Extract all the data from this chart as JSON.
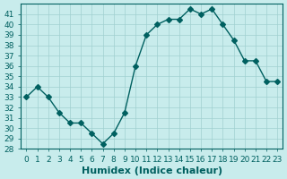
{
  "x": [
    0,
    1,
    2,
    3,
    4,
    5,
    6,
    7,
    8,
    9,
    10,
    11,
    12,
    13,
    14,
    15,
    16,
    17,
    18,
    19,
    20,
    21,
    22,
    23
  ],
  "y": [
    33,
    34,
    33,
    31.5,
    30.5,
    30.5,
    29.5,
    28.5,
    29.5,
    31.5,
    36,
    39,
    40,
    40.5,
    40.5,
    41.5,
    41,
    41.5,
    40,
    38.5,
    36.5,
    36.5,
    34.5,
    34.5
  ],
  "line_color": "#006060",
  "marker": "D",
  "marker_size": 3,
  "bg_color": "#c8ecec",
  "grid_color": "#a0d0d0",
  "xlabel": "Humidex (Indice chaleur)",
  "xlim_min": -0.5,
  "xlim_max": 23.5,
  "ylim_min": 28,
  "ylim_max": 42,
  "yticks": [
    28,
    29,
    30,
    31,
    32,
    33,
    34,
    35,
    36,
    37,
    38,
    39,
    40,
    41
  ],
  "xticks": [
    0,
    1,
    2,
    3,
    4,
    5,
    6,
    7,
    8,
    9,
    10,
    11,
    12,
    13,
    14,
    15,
    16,
    17,
    18,
    19,
    20,
    21,
    22,
    23
  ],
  "tick_label_size": 6.5,
  "xlabel_size": 8,
  "tick_color": "#006060",
  "axis_color": "#006060"
}
